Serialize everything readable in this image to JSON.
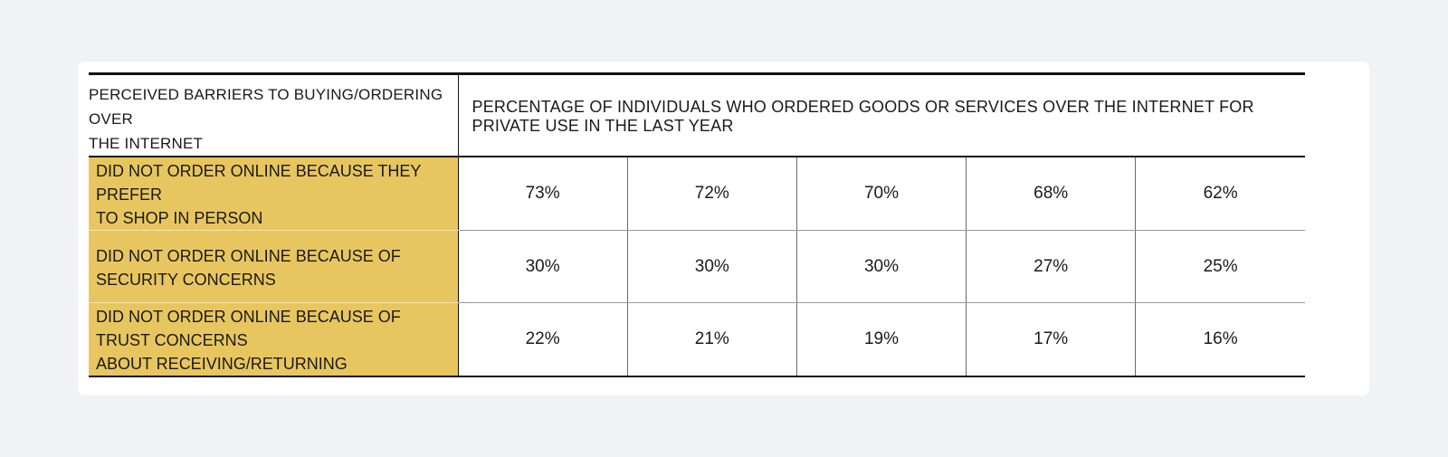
{
  "chart_data": {
    "type": "table",
    "header": {
      "barrier_label_lines": [
        "PERCEIVED BARRIERS TO BUYING/ORDERING OVER",
        "THE INTERNET"
      ],
      "value_header": "PERCENTAGE OF INDIVIDUALS WHO ORDERED GOODS OR SERVICES OVER THE INTERNET FOR PRIVATE USE IN THE LAST YEAR"
    },
    "rows": [
      {
        "label_lines": [
          "DID NOT ORDER ONLINE BECAUSE THEY PREFER",
          "TO SHOP IN PERSON"
        ],
        "values": [
          "73%",
          "72%",
          "70%",
          "68%",
          "62%"
        ]
      },
      {
        "label_lines": [
          "DID NOT ORDER ONLINE BECAUSE OF",
          "SECURITY CONCERNS"
        ],
        "values": [
          "30%",
          "30%",
          "30%",
          "27%",
          "25%"
        ]
      },
      {
        "label_lines": [
          "DID NOT ORDER ONLINE BECAUSE OF TRUST CONCERNS",
          "ABOUT RECEIVING/RETURNING"
        ],
        "values": [
          "22%",
          "21%",
          "19%",
          "17%",
          "16%"
        ]
      }
    ],
    "colors": {
      "label_fill": "#e8c65f",
      "page_background": "#eff3f6",
      "card_background": "#ffffff",
      "rule": "#111111"
    }
  }
}
